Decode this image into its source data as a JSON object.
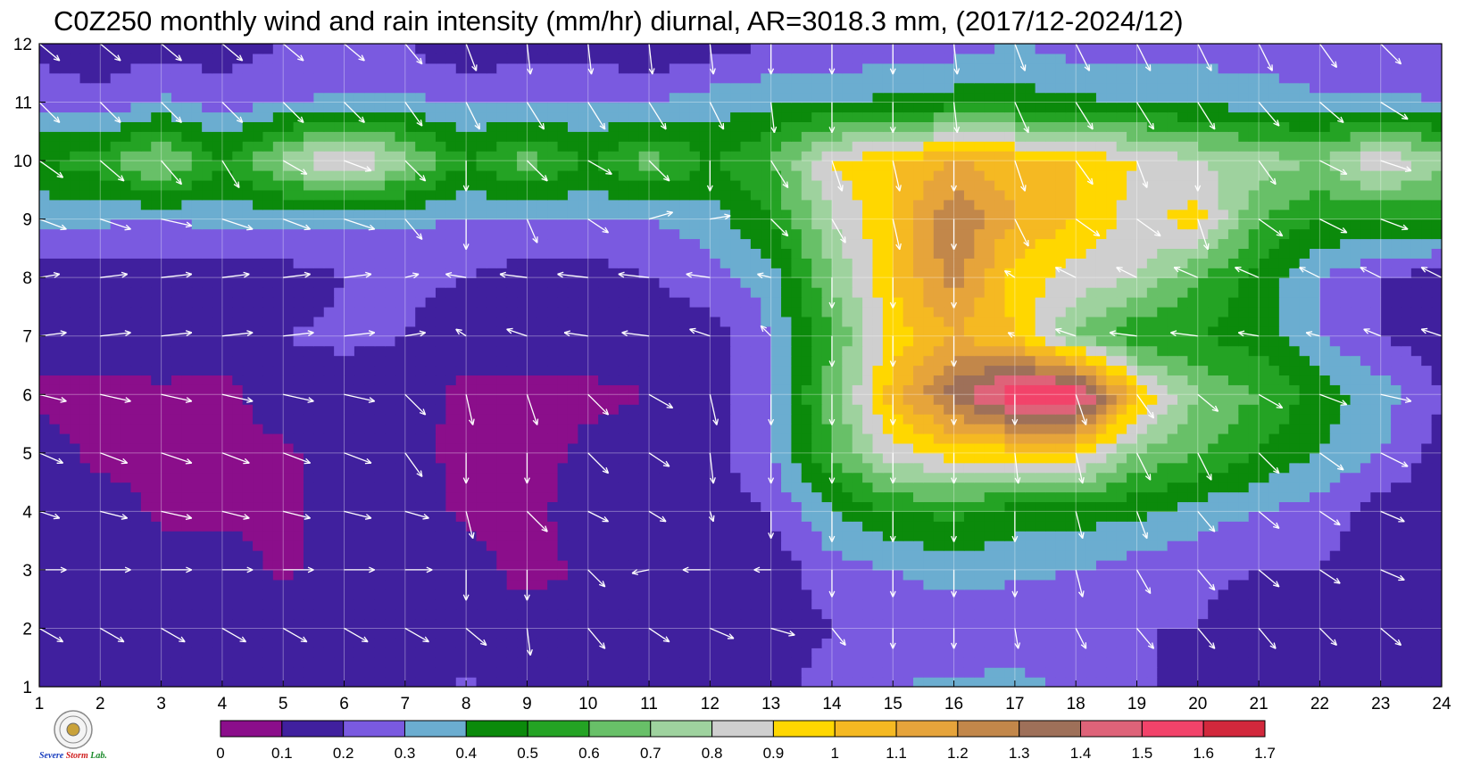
{
  "title": "C0Z250 monthly wind and rain intensity (mm/hr) diurnal, AR=3018.3 mm, (2017/12-2024/12)",
  "chart_data": {
    "type": "heatmap",
    "x_ticks": [
      "1",
      "2",
      "3",
      "4",
      "5",
      "6",
      "7",
      "8",
      "9",
      "10",
      "11",
      "12",
      "13",
      "14",
      "15",
      "16",
      "17",
      "18",
      "19",
      "20",
      "21",
      "22",
      "23",
      "24"
    ],
    "y_ticks": [
      "1",
      "2",
      "3",
      "4",
      "5",
      "6",
      "7",
      "8",
      "9",
      "10",
      "11",
      "12"
    ],
    "xlim": [
      1,
      24
    ],
    "ylim": [
      1,
      12
    ],
    "grid": true,
    "x": [
      1,
      2,
      3,
      4,
      5,
      6,
      7,
      8,
      9,
      10,
      11,
      12,
      13,
      14,
      15,
      16,
      17,
      18,
      19,
      20,
      21,
      22,
      23,
      24
    ],
    "y": [
      1,
      2,
      3,
      4,
      5,
      6,
      7,
      8,
      9,
      10,
      11,
      12
    ],
    "values": [
      [
        0.15,
        0.15,
        0.15,
        0.15,
        0.15,
        0.15,
        0.15,
        0.22,
        0.15,
        0.15,
        0.15,
        0.15,
        0.15,
        0.25,
        0.3,
        0.32,
        0.33,
        0.28,
        0.22,
        0.15,
        0.15,
        0.15,
        0.15,
        0.15
      ],
      [
        0.15,
        0.15,
        0.15,
        0.15,
        0.15,
        0.15,
        0.15,
        0.15,
        0.15,
        0.15,
        0.15,
        0.15,
        0.15,
        0.2,
        0.22,
        0.22,
        0.23,
        0.22,
        0.2,
        0.2,
        0.15,
        0.15,
        0.15,
        0.15
      ],
      [
        0.15,
        0.15,
        0.15,
        0.15,
        0.08,
        0.15,
        0.15,
        0.15,
        0.06,
        0.12,
        0.15,
        0.15,
        0.15,
        0.25,
        0.3,
        0.35,
        0.32,
        0.3,
        0.25,
        0.22,
        0.2,
        0.2,
        0.15,
        0.15
      ],
      [
        0.15,
        0.15,
        0.08,
        0.08,
        0.08,
        0.15,
        0.15,
        0.08,
        0.07,
        0.15,
        0.15,
        0.15,
        0.2,
        0.4,
        0.5,
        0.52,
        0.45,
        0.45,
        0.42,
        0.35,
        0.3,
        0.25,
        0.15,
        0.15
      ],
      [
        0.15,
        0.07,
        0.08,
        0.08,
        0.08,
        0.15,
        0.15,
        0.06,
        0.06,
        0.12,
        0.15,
        0.15,
        0.3,
        0.6,
        0.85,
        0.95,
        0.95,
        0.95,
        0.7,
        0.6,
        0.5,
        0.4,
        0.3,
        0.15
      ],
      [
        0.08,
        0.07,
        0.07,
        0.07,
        0.15,
        0.15,
        0.15,
        0.07,
        0.08,
        0.08,
        0.1,
        0.15,
        0.3,
        0.65,
        1.05,
        1.35,
        1.6,
        1.6,
        1.0,
        0.7,
        0.6,
        0.45,
        0.35,
        0.2
      ],
      [
        0.15,
        0.15,
        0.2,
        0.15,
        0.2,
        0.22,
        0.2,
        0.15,
        0.15,
        0.15,
        0.15,
        0.15,
        0.3,
        0.6,
        0.95,
        1.1,
        1.0,
        0.7,
        0.5,
        0.5,
        0.45,
        0.3,
        0.2,
        0.15
      ],
      [
        0.15,
        0.12,
        0.15,
        0.12,
        0.15,
        0.2,
        0.22,
        0.2,
        0.15,
        0.15,
        0.2,
        0.25,
        0.35,
        0.7,
        1.0,
        1.25,
        0.95,
        0.85,
        0.8,
        0.6,
        0.45,
        0.3,
        0.2,
        0.15
      ],
      [
        0.32,
        0.32,
        0.3,
        0.33,
        0.32,
        0.32,
        0.32,
        0.3,
        0.3,
        0.3,
        0.3,
        0.35,
        0.5,
        0.8,
        1.0,
        1.3,
        1.1,
        1.0,
        0.85,
        0.95,
        0.6,
        0.5,
        0.5,
        0.5
      ],
      [
        0.5,
        0.55,
        0.75,
        0.5,
        0.75,
        0.95,
        0.75,
        0.5,
        0.65,
        0.5,
        0.65,
        0.5,
        0.6,
        0.9,
        1.0,
        1.1,
        1.05,
        1.0,
        0.9,
        0.8,
        0.75,
        0.7,
        0.9,
        0.75
      ],
      [
        0.28,
        0.22,
        0.32,
        0.25,
        0.3,
        0.32,
        0.32,
        0.3,
        0.3,
        0.3,
        0.3,
        0.35,
        0.38,
        0.4,
        0.42,
        0.45,
        0.45,
        0.42,
        0.4,
        0.38,
        0.35,
        0.33,
        0.32,
        0.3
      ],
      [
        0.15,
        0.15,
        0.15,
        0.15,
        0.2,
        0.2,
        0.2,
        0.1,
        0.15,
        0.15,
        0.1,
        0.15,
        0.2,
        0.2,
        0.25,
        0.25,
        0.3,
        0.25,
        0.25,
        0.25,
        0.25,
        0.2,
        0.2,
        0.25
      ]
    ],
    "levels": [
      0,
      0.1,
      0.2,
      0.3,
      0.4,
      0.5,
      0.6,
      0.7,
      0.8,
      0.9,
      1,
      1.1,
      1.2,
      1.3,
      1.4,
      1.5,
      1.6,
      1.7
    ],
    "level_labels": [
      "0",
      "0.1",
      "0.2",
      "0.3",
      "0.4",
      "0.5",
      "0.6",
      "0.7",
      "0.8",
      "0.9",
      "1",
      "1.1",
      "1.2",
      "1.3",
      "1.4",
      "1.5",
      "1.6",
      "1.7"
    ],
    "level_colors": [
      "#8B0E8B",
      "#40209E",
      "#7A5AE0",
      "#6BADD0",
      "#0B8A0B",
      "#24A324",
      "#68C068",
      "#9ED29E",
      "#CFCFCF",
      "#FFD700",
      "#F5B922",
      "#E6A43B",
      "#C2874A",
      "#9E7059",
      "#DE6379",
      "#F2436A",
      "#D2283C"
    ],
    "wind_u": [
      [
        0.6,
        0.7,
        0.8,
        0.7,
        0.7,
        0.7,
        0.7,
        0.5,
        0.1,
        0.3,
        0.6,
        0.7,
        0.7,
        0.2,
        -0.1,
        -0.2,
        0.3,
        0.6,
        0.6,
        0.6,
        0.6,
        0.6,
        0.6,
        0.6
      ],
      [
        0.7,
        0.7,
        0.7,
        0.7,
        0.7,
        0.7,
        0.7,
        0.6,
        0.1,
        0.5,
        0.6,
        0.7,
        0.7,
        0.4,
        0.0,
        0.0,
        0.1,
        0.3,
        0.5,
        0.5,
        0.5,
        0.5,
        0.6,
        0.6
      ],
      [
        0.8,
        0.9,
        0.9,
        0.9,
        0.9,
        0.9,
        0.8,
        0.0,
        0.0,
        0.5,
        -0.5,
        -0.8,
        -0.5,
        0.0,
        0.0,
        0.0,
        0.0,
        0.2,
        0.4,
        0.5,
        0.6,
        0.6,
        0.7,
        0.8
      ],
      [
        0.6,
        0.8,
        0.9,
        0.8,
        0.8,
        0.8,
        0.7,
        0.2,
        0.6,
        0.6,
        0.5,
        0.1,
        0.0,
        0.0,
        0.0,
        0.0,
        0.0,
        0.2,
        0.3,
        0.5,
        0.6,
        0.6,
        0.7,
        0.6
      ],
      [
        0.7,
        0.8,
        0.9,
        0.8,
        0.8,
        0.8,
        0.5,
        0.0,
        0.0,
        0.6,
        0.6,
        0.1,
        0.0,
        0.0,
        0.0,
        0.0,
        0.1,
        0.2,
        0.4,
        0.4,
        0.6,
        0.7,
        0.8,
        0.7
      ],
      [
        0.8,
        0.9,
        0.9,
        0.9,
        0.9,
        0.9,
        0.6,
        0.2,
        0.3,
        0.6,
        0.7,
        0.2,
        0.0,
        0.0,
        0.0,
        0.0,
        0.0,
        0.3,
        0.5,
        0.6,
        0.7,
        0.8,
        0.9,
        0.9
      ],
      [
        0.8,
        0.9,
        0.9,
        0.9,
        0.9,
        0.9,
        0.6,
        -0.3,
        -0.6,
        -0.7,
        -0.8,
        -0.6,
        -0.3,
        0.0,
        0.0,
        0.0,
        -0.2,
        -0.6,
        -0.8,
        -0.8,
        -0.6,
        -0.4,
        -0.5,
        -0.6
      ],
      [
        0.6,
        0.8,
        0.9,
        0.8,
        0.8,
        0.8,
        0.4,
        -0.6,
        -0.8,
        -0.9,
        -0.9,
        -0.7,
        -0.4,
        0.0,
        0.0,
        0.0,
        -0.3,
        -0.6,
        -0.6,
        -0.7,
        -0.7,
        -0.6,
        -0.6,
        -0.6
      ],
      [
        0.8,
        0.9,
        0.9,
        0.9,
        0.8,
        0.9,
        0.5,
        0.0,
        0.3,
        0.6,
        0.7,
        0.6,
        0.5,
        0.4,
        0.2,
        0.0,
        0.4,
        0.7,
        0.7,
        0.3,
        0.7,
        0.8,
        0.8,
        0.8
      ],
      [
        0.7,
        0.7,
        0.6,
        0.5,
        0.7,
        0.8,
        0.6,
        0.0,
        0.6,
        0.7,
        0.6,
        0.0,
        0.5,
        0.3,
        0.2,
        0.0,
        0.3,
        0.5,
        0.3,
        0.0,
        0.5,
        0.8,
        0.9,
        0.9
      ],
      [
        0.6,
        0.6,
        0.6,
        0.6,
        0.6,
        0.6,
        0.5,
        0.4,
        0.5,
        0.5,
        0.5,
        0.4,
        0.1,
        0.0,
        0.0,
        0.1,
        0.4,
        0.5,
        0.5,
        0.5,
        0.6,
        0.7,
        0.8,
        0.8
      ],
      [
        0.6,
        0.6,
        0.6,
        0.6,
        0.6,
        0.6,
        0.5,
        0.3,
        0.1,
        0.1,
        0.1,
        0.1,
        0.0,
        0.0,
        0.0,
        0.1,
        0.3,
        0.4,
        0.4,
        0.4,
        0.4,
        0.5,
        0.6,
        0.6
      ]
    ],
    "wind_v": [
      [
        -0.4,
        -0.4,
        -0.2,
        -0.3,
        -0.3,
        -0.3,
        -0.3,
        -0.5,
        -0.9,
        -0.8,
        -0.4,
        -0.4,
        -0.3,
        -0.5,
        -0.5,
        -0.5,
        -0.5,
        -0.5,
        -0.5,
        -0.5,
        -0.5,
        -0.5,
        -0.5,
        -0.5
      ],
      [
        -0.4,
        -0.4,
        -0.4,
        -0.4,
        -0.4,
        -0.4,
        -0.4,
        -0.5,
        -0.8,
        -0.6,
        -0.4,
        -0.3,
        -0.2,
        -0.5,
        -0.6,
        -0.6,
        -0.6,
        -0.6,
        -0.6,
        -0.6,
        -0.6,
        -0.5,
        -0.5,
        -0.5
      ],
      [
        0.0,
        0.0,
        0.0,
        0.0,
        0.0,
        0.0,
        0.0,
        -0.9,
        -0.9,
        -0.5,
        -0.1,
        0.0,
        0.0,
        -0.8,
        -0.8,
        -0.8,
        -0.8,
        -0.8,
        -0.7,
        -0.6,
        -0.5,
        -0.4,
        -0.3,
        -0.2
      ],
      [
        -0.2,
        -0.2,
        -0.2,
        -0.2,
        -0.2,
        -0.2,
        -0.2,
        -0.8,
        -0.6,
        -0.3,
        -0.3,
        -0.3,
        -0.8,
        -0.9,
        -0.9,
        -0.9,
        -0.9,
        -0.8,
        -0.8,
        -0.6,
        -0.5,
        -0.4,
        -0.3,
        -0.3
      ],
      [
        -0.3,
        -0.3,
        -0.3,
        -0.3,
        -0.3,
        -0.3,
        -0.7,
        -0.9,
        -0.9,
        -0.6,
        -0.4,
        -0.9,
        -0.9,
        -0.9,
        -0.9,
        -0.9,
        -0.9,
        -0.9,
        -0.8,
        -0.8,
        -0.6,
        -0.5,
        -0.4,
        -0.4
      ],
      [
        -0.2,
        -0.2,
        -0.2,
        -0.2,
        -0.2,
        -0.2,
        -0.6,
        -0.9,
        -0.9,
        -0.6,
        -0.4,
        -0.9,
        -0.9,
        -0.9,
        -0.9,
        -0.9,
        -0.9,
        -0.9,
        -0.7,
        -0.5,
        -0.4,
        -0.3,
        -0.2,
        -0.2
      ],
      [
        0.1,
        0.1,
        0.1,
        0.1,
        0.1,
        0.1,
        0.1,
        0.2,
        0.2,
        0.1,
        0.1,
        0.2,
        0.3,
        -0.9,
        -0.9,
        -0.9,
        0.1,
        0.2,
        0.1,
        0.1,
        0.1,
        0.1,
        0.2,
        0.2
      ],
      [
        0.1,
        0.1,
        0.1,
        0.1,
        0.1,
        0.1,
        0.1,
        0.1,
        0.1,
        0.1,
        0.1,
        0.1,
        0.1,
        -0.9,
        -0.9,
        -0.9,
        0.2,
        0.3,
        0.3,
        0.3,
        0.3,
        0.3,
        0.3,
        0.3
      ],
      [
        -0.3,
        -0.3,
        -0.2,
        -0.3,
        -0.3,
        -0.3,
        -0.6,
        -0.9,
        -0.7,
        -0.4,
        0.2,
        0.1,
        -0.5,
        -0.7,
        -0.9,
        -0.9,
        -0.8,
        -0.5,
        -0.5,
        -0.9,
        -0.5,
        -0.4,
        -0.3,
        -0.3
      ],
      [
        -0.5,
        -0.6,
        -0.7,
        -0.8,
        -0.4,
        -0.3,
        -0.6,
        -0.9,
        -0.6,
        -0.4,
        -0.6,
        -0.9,
        -0.8,
        -0.9,
        -0.9,
        -0.9,
        -0.9,
        -0.7,
        -0.8,
        -0.9,
        -0.7,
        -0.4,
        -0.3,
        -0.2
      ],
      [
        -0.6,
        -0.6,
        -0.6,
        -0.6,
        -0.6,
        -0.6,
        -0.7,
        -0.8,
        -0.8,
        -0.8,
        -0.8,
        -0.8,
        -0.9,
        -0.9,
        -0.9,
        -0.9,
        -0.9,
        -0.8,
        -0.8,
        -0.8,
        -0.7,
        -0.6,
        -0.5,
        -0.5
      ],
      [
        -0.5,
        -0.5,
        -0.5,
        -0.5,
        -0.5,
        -0.5,
        -0.6,
        -0.8,
        -0.9,
        -0.9,
        -0.9,
        -0.9,
        -0.9,
        -0.9,
        -0.9,
        -0.9,
        -0.8,
        -0.8,
        -0.8,
        -0.8,
        -0.8,
        -0.7,
        -0.6,
        -0.6
      ]
    ],
    "contour_line_color": "#F2A900",
    "arrow_color": "#ffffff"
  },
  "logo": {
    "text_a": "Severe",
    "text_b": "Storm",
    "text_c": "Lab."
  }
}
